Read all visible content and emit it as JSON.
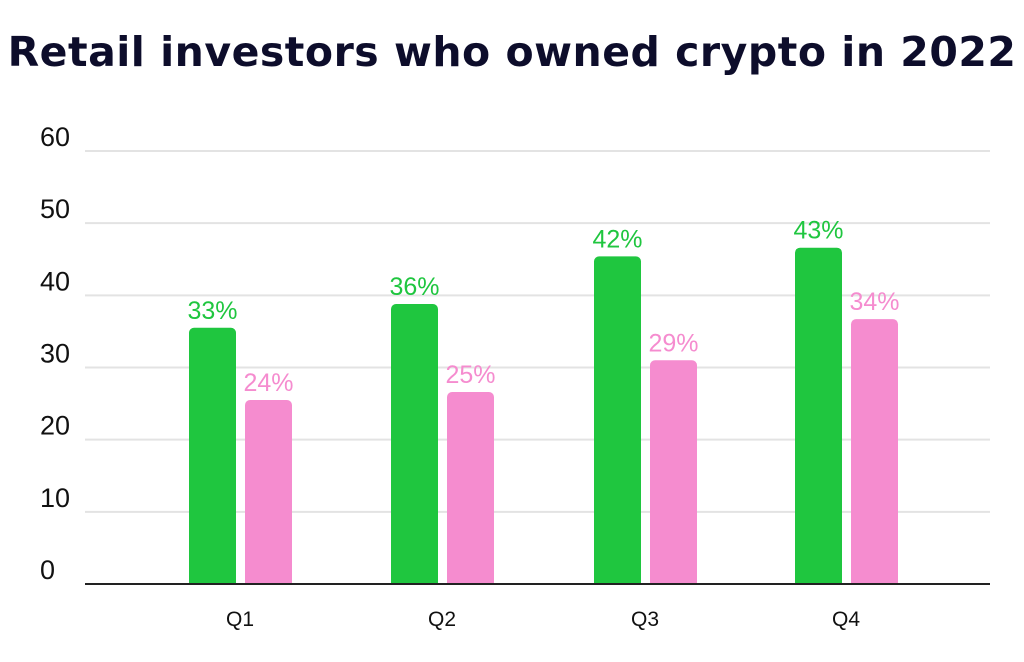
{
  "colors": {
    "green": "#1fc63f",
    "pink": "#f58ccf",
    "title": "#0d0d2b",
    "grid": "#e3e3e3",
    "axis": "#222222"
  },
  "chart_data": {
    "type": "bar",
    "title": "Retail investors who owned crypto in 2022",
    "xlabel": "",
    "ylabel": "",
    "ylim": [
      0,
      60
    ],
    "yticks": [
      0,
      10,
      20,
      30,
      40,
      50,
      60
    ],
    "grid": true,
    "categories": [
      "Q1",
      "Q2",
      "Q3",
      "Q4"
    ],
    "series": [
      {
        "values": [
          35.5,
          38.8,
          45.4,
          46.6
        ],
        "labels": [
          "33%",
          "36%",
          "42%",
          "43%"
        ],
        "color": "#1fc63f"
      },
      {
        "values": [
          25.5,
          26.6,
          31.0,
          36.7
        ],
        "labels": [
          "24%",
          "25%",
          "29%",
          "34%"
        ],
        "color": "#f58ccf"
      }
    ]
  }
}
